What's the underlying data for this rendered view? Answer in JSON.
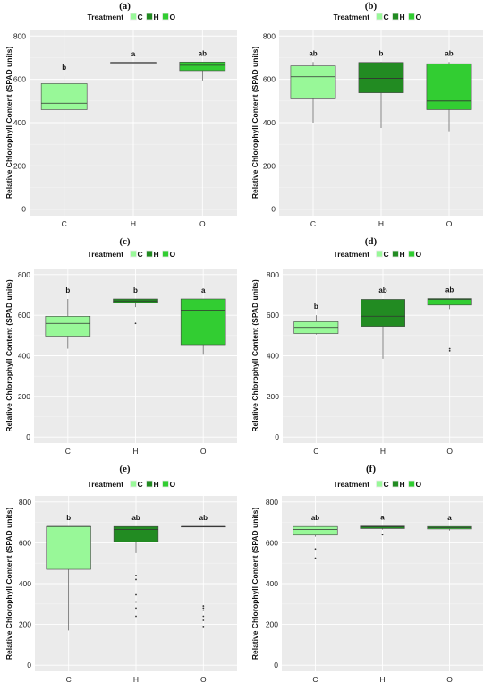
{
  "legend": {
    "title": "Treatment",
    "keys": [
      {
        "label": "C",
        "color": "#98f898"
      },
      {
        "label": "H",
        "color": "#228b22"
      },
      {
        "label": "O",
        "color": "#32cd32"
      }
    ]
  },
  "chart_data": [
    {
      "panel": "(a)",
      "type": "box",
      "ylabel": "Relative Chlorophyll Content (SPAD units)",
      "ylim": [
        -30,
        830
      ],
      "yticks": [
        0,
        200,
        400,
        600,
        800
      ],
      "categories": [
        "C",
        "H",
        "O"
      ],
      "boxes": [
        {
          "cat": "C",
          "color": "#98f898",
          "min": 450,
          "q1": 460,
          "median": 490,
          "q3": 580,
          "max": 615,
          "outliers": [],
          "sig": "b"
        },
        {
          "cat": "H",
          "color": "#228b22",
          "min": 678,
          "q1": 678,
          "median": 678,
          "q3": 678,
          "max": 678,
          "outliers": [],
          "sig": "a"
        },
        {
          "cat": "O",
          "color": "#32cd32",
          "min": 595,
          "q1": 640,
          "median": 665,
          "q3": 680,
          "max": 680,
          "outliers": [],
          "sig": "ab"
        }
      ]
    },
    {
      "panel": "(b)",
      "type": "box",
      "ylabel": "Relative Chlorophyll Content (SPAD units)",
      "ylim": [
        -30,
        830
      ],
      "yticks": [
        0,
        200,
        400,
        600,
        800
      ],
      "categories": [
        "C",
        "H",
        "O"
      ],
      "boxes": [
        {
          "cat": "C",
          "color": "#98f898",
          "min": 400,
          "q1": 510,
          "median": 612,
          "q3": 662,
          "max": 680,
          "outliers": [],
          "sig": "ab"
        },
        {
          "cat": "H",
          "color": "#228b22",
          "min": 375,
          "q1": 538,
          "median": 605,
          "q3": 678,
          "max": 680,
          "outliers": [],
          "sig": "b"
        },
        {
          "cat": "O",
          "color": "#32cd32",
          "min": 360,
          "q1": 460,
          "median": 500,
          "q3": 672,
          "max": 680,
          "outliers": [],
          "sig": "ab"
        }
      ]
    },
    {
      "panel": "(c)",
      "type": "box",
      "ylabel": "Relative Chlorophyll Content (SPAD units)",
      "ylim": [
        -30,
        830
      ],
      "yticks": [
        0,
        200,
        400,
        600,
        800
      ],
      "categories": [
        "C",
        "H",
        "O"
      ],
      "boxes": [
        {
          "cat": "C",
          "color": "#98f898",
          "min": 435,
          "q1": 497,
          "median": 560,
          "q3": 595,
          "max": 680,
          "outliers": [],
          "sig": "b"
        },
        {
          "cat": "H",
          "color": "#228b22",
          "min": 640,
          "q1": 660,
          "median": 670,
          "q3": 680,
          "max": 680,
          "outliers": [
            560
          ],
          "sig": "b"
        },
        {
          "cat": "O",
          "color": "#32cd32",
          "min": 405,
          "q1": 455,
          "median": 625,
          "q3": 680,
          "max": 680,
          "outliers": [],
          "sig": "a"
        }
      ]
    },
    {
      "panel": "(d)",
      "type": "box",
      "ylabel": "Relative Chlorophyll Content (SPAD units)",
      "ylim": [
        -30,
        830
      ],
      "yticks": [
        0,
        200,
        400,
        600,
        800
      ],
      "categories": [
        "C",
        "H",
        "O"
      ],
      "boxes": [
        {
          "cat": "C",
          "color": "#98f898",
          "min": 505,
          "q1": 510,
          "median": 540,
          "q3": 568,
          "max": 600,
          "outliers": [],
          "sig": "b"
        },
        {
          "cat": "H",
          "color": "#228b22",
          "min": 385,
          "q1": 545,
          "median": 595,
          "q3": 678,
          "max": 680,
          "outliers": [],
          "sig": "ab"
        },
        {
          "cat": "O",
          "color": "#32cd32",
          "min": 630,
          "q1": 650,
          "median": 678,
          "q3": 682,
          "max": 682,
          "outliers": [
            435,
            425
          ],
          "sig": "ab"
        }
      ]
    },
    {
      "panel": "(e)",
      "type": "box",
      "ylabel": "Relative Chlorophyll Content (SPAD units)",
      "ylim": [
        -30,
        830
      ],
      "yticks": [
        0,
        200,
        400,
        600,
        800
      ],
      "categories": [
        "C",
        "H",
        "O"
      ],
      "boxes": [
        {
          "cat": "C",
          "color": "#98f898",
          "min": 170,
          "q1": 470,
          "median": 680,
          "q3": 680,
          "max": 680,
          "outliers": [],
          "sig": "b"
        },
        {
          "cat": "H",
          "color": "#228b22",
          "min": 550,
          "q1": 605,
          "median": 665,
          "q3": 680,
          "max": 680,
          "outliers": [
            440,
            420,
            345,
            310,
            280,
            240
          ],
          "sig": "ab"
        },
        {
          "cat": "O",
          "color": "#32cd32",
          "min": 680,
          "q1": 680,
          "median": 680,
          "q3": 680,
          "max": 680,
          "outliers": [
            290,
            280,
            270,
            240,
            220,
            190
          ],
          "sig": "ab"
        }
      ]
    },
    {
      "panel": "(f)",
      "type": "box",
      "ylabel": "Relative Chlorophyll Content (SPAD units)",
      "ylim": [
        -30,
        830
      ],
      "yticks": [
        0,
        200,
        400,
        600,
        800
      ],
      "categories": [
        "C",
        "H",
        "O"
      ],
      "boxes": [
        {
          "cat": "C",
          "color": "#98f898",
          "min": 630,
          "q1": 638,
          "median": 665,
          "q3": 680,
          "max": 680,
          "outliers": [
            570,
            525
          ],
          "sig": "ab"
        },
        {
          "cat": "H",
          "color": "#228b22",
          "min": 665,
          "q1": 670,
          "median": 678,
          "q3": 682,
          "max": 682,
          "outliers": [
            640
          ],
          "sig": "a"
        },
        {
          "cat": "O",
          "color": "#32cd32",
          "min": 660,
          "q1": 668,
          "median": 675,
          "q3": 680,
          "max": 680,
          "outliers": [],
          "sig": "a"
        }
      ]
    }
  ]
}
